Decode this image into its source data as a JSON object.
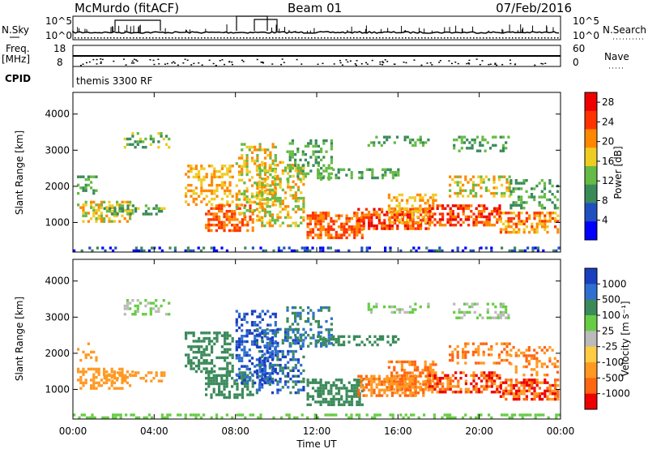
{
  "header": {
    "site": "McMurdo (fitACF)",
    "beam": "Beam 01",
    "date": "07/Feb/2016"
  },
  "sky_panel": {
    "left_label": "N.Sky",
    "right_label": "N.Search",
    "left_ticks": [
      "10^5",
      "10^0"
    ],
    "right_ticks": [
      "10^5",
      "10^0"
    ]
  },
  "freq_panel": {
    "left_label_1": "Freq.",
    "left_label_2": "[MHz]",
    "right_label": "Nave",
    "left_ticks": [
      "18",
      "8"
    ],
    "right_ticks": [
      "60",
      "0"
    ]
  },
  "cpid": {
    "label": "CPID",
    "value": "themis 3300 RF"
  },
  "chart_data": [
    {
      "type": "heatmap",
      "ylabel": "Slant Range [km]",
      "xlabel": "Time UT",
      "x_ticks": [
        "00:00",
        "04:00",
        "08:00",
        "12:00",
        "16:00",
        "20:00",
        "00:00"
      ],
      "xlim_hours": [
        0,
        24
      ],
      "y_ticks": [
        1000,
        2000,
        3000,
        4000
      ],
      "ylim_km": [
        180,
        4600
      ],
      "colorbar": {
        "label": "Power [dB]",
        "ticks": [
          4,
          8,
          12,
          16,
          20,
          24,
          28
        ],
        "range": [
          0,
          30
        ],
        "colors": [
          "#0000ff",
          "#2050c0",
          "#3a8a5a",
          "#66bb44",
          "#eecc22",
          "#ff8800",
          "#ff3300",
          "#ee0000"
        ]
      }
    },
    {
      "type": "heatmap",
      "ylabel": "Slant Range [km]",
      "xlabel": "Time UT",
      "x_ticks": [
        "00:00",
        "04:00",
        "08:00",
        "12:00",
        "16:00",
        "20:00",
        "00:00"
      ],
      "xlim_hours": [
        0,
        24
      ],
      "y_ticks": [
        1000,
        2000,
        3000,
        4000
      ],
      "ylim_km": [
        180,
        4600
      ],
      "colorbar": {
        "label": "Velocity [m s⁻¹]",
        "ticks": [
          "1000",
          "500",
          "100",
          "25",
          "-25",
          "-100",
          "-500",
          "-1000"
        ],
        "colors": [
          "#1a3fbf",
          "#2f6fcf",
          "#3a8a5a",
          "#66cc44",
          "#bbbbbb",
          "#ffcc44",
          "#ff9922",
          "#ff6611",
          "#ee0000"
        ]
      }
    }
  ]
}
